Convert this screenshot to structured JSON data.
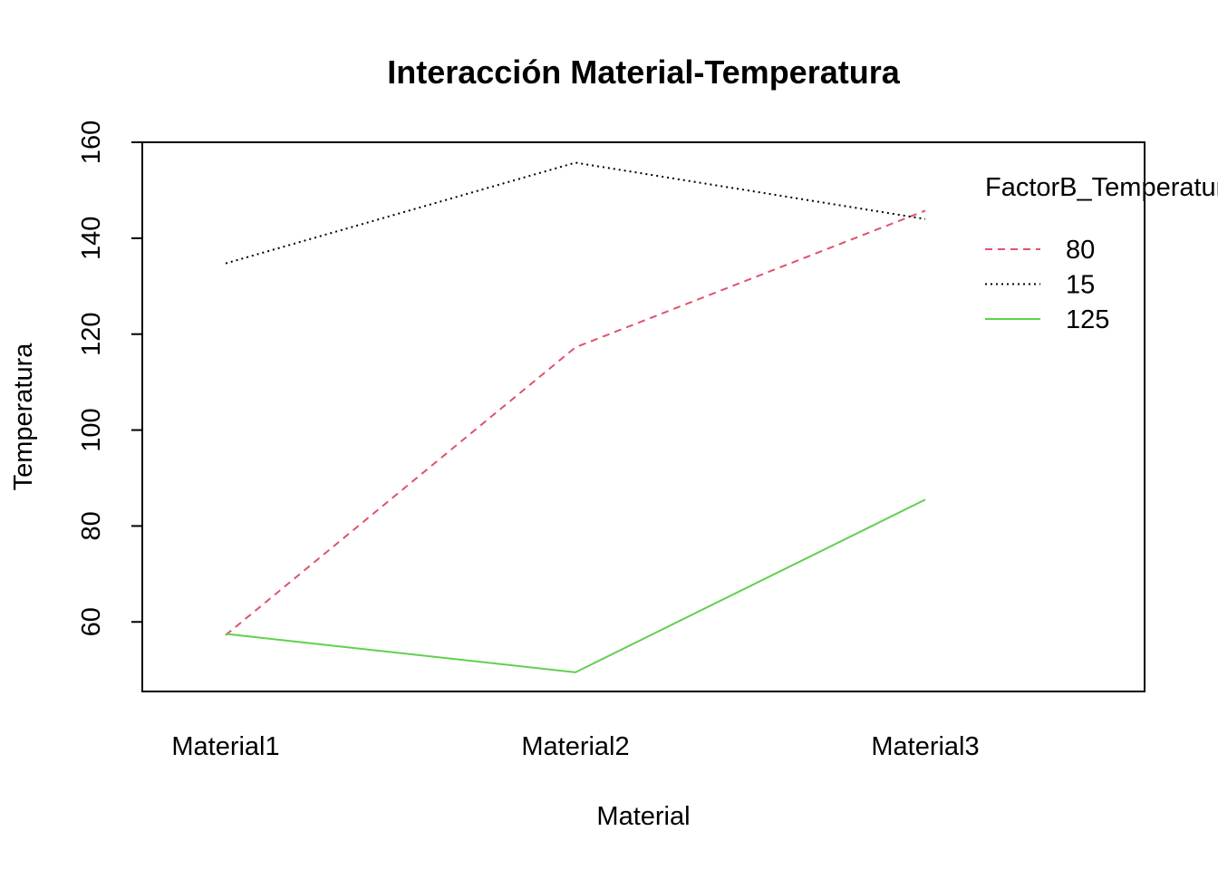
{
  "chart_data": {
    "type": "line",
    "title": "Interacción Material-Temperatura",
    "xlabel": "Material",
    "ylabel": "Temperatura",
    "categories": [
      "Material1",
      "Material2",
      "Material3"
    ],
    "yticks": [
      60,
      80,
      100,
      120,
      140,
      160
    ],
    "ylim": [
      45.5,
      160
    ],
    "grid": false,
    "legend": {
      "title": "FactorB_Temperatura",
      "placement": "top-right"
    },
    "series": [
      {
        "name": "80",
        "values": [
          57.25,
          117.25,
          145.75
        ],
        "color": "#DF536B",
        "dash": "dashed"
      },
      {
        "name": "15",
        "values": [
          134.75,
          155.75,
          144.0
        ],
        "color": "#000000",
        "dash": "dotted"
      },
      {
        "name": "125",
        "values": [
          57.5,
          49.5,
          85.5
        ],
        "color": "#61D04F",
        "dash": "solid"
      }
    ]
  }
}
